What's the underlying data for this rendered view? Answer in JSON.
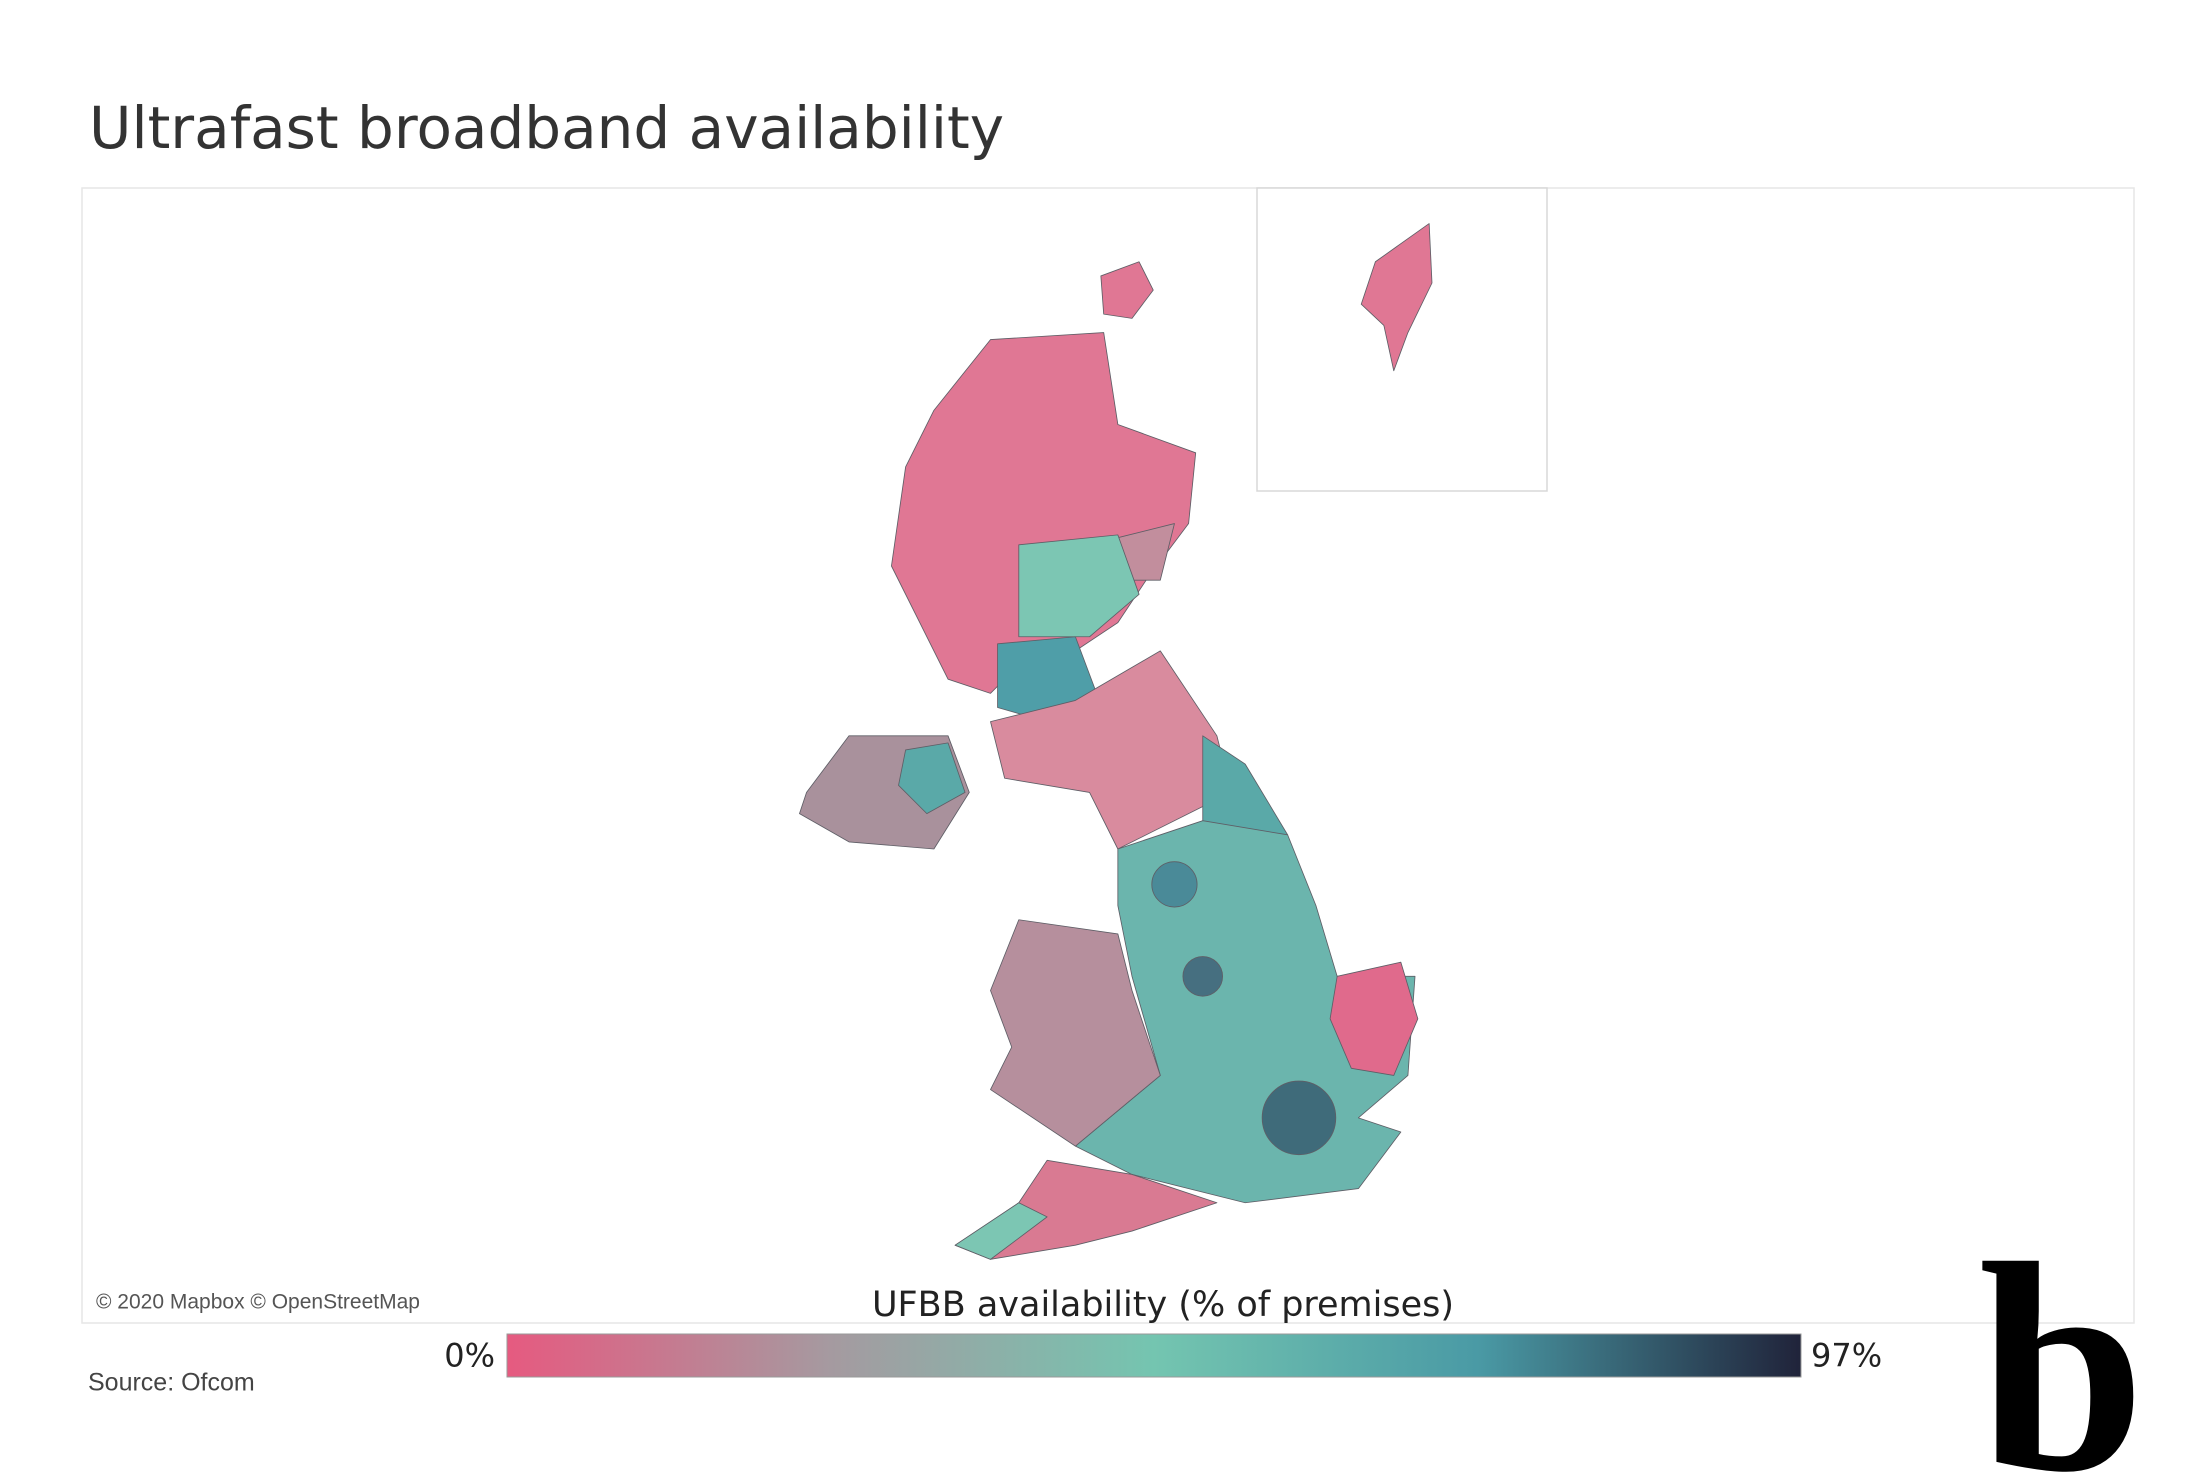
{
  "chart_data": {
    "type": "choropleth",
    "title": "Ultrafast broadband availability",
    "attribution": "© 2020 Mapbox © OpenStreetMap",
    "legend": {
      "title": "UFBB availability (% of premises)",
      "range": [
        0,
        97
      ],
      "ticks": [
        {
          "value": 0,
          "label": "0%"
        },
        {
          "value": 97,
          "label": "97%"
        }
      ],
      "colors": [
        "#e65a80",
        "#a59aa0",
        "#74c5b0",
        "#4a9aa5",
        "#20233a"
      ]
    },
    "source": "Source: Ofcom",
    "logo": "b"
  }
}
